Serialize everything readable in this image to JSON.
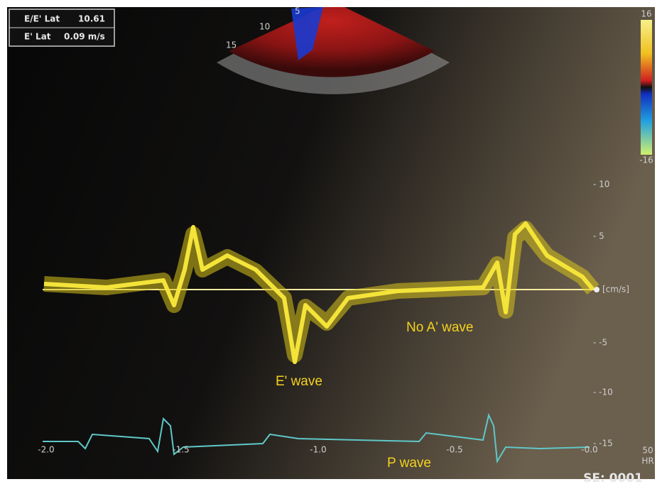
{
  "measurements": [
    {
      "label": "E/E' Lat",
      "value": "10.61"
    },
    {
      "label": "E' Lat",
      "value": "0.09 m/s"
    }
  ],
  "sector_depth_labels": [
    "5",
    "10",
    "15"
  ],
  "color_scale": {
    "top": "16",
    "bottom": "-16"
  },
  "velocity_axis": {
    "labels": [
      "- 10",
      "- 5",
      "[cm/s]",
      "- -5",
      "- -10",
      "- -15"
    ]
  },
  "time_axis": {
    "labels": [
      "-2.0",
      "-1.5",
      "-1.0",
      "-0.5",
      "-0.0"
    ]
  },
  "heart_rate": {
    "value": "50",
    "unit": "HR"
  },
  "annotations": [
    "E' wave",
    "No A' wave",
    "P wave"
  ],
  "frame_label": "SE: 0001"
}
